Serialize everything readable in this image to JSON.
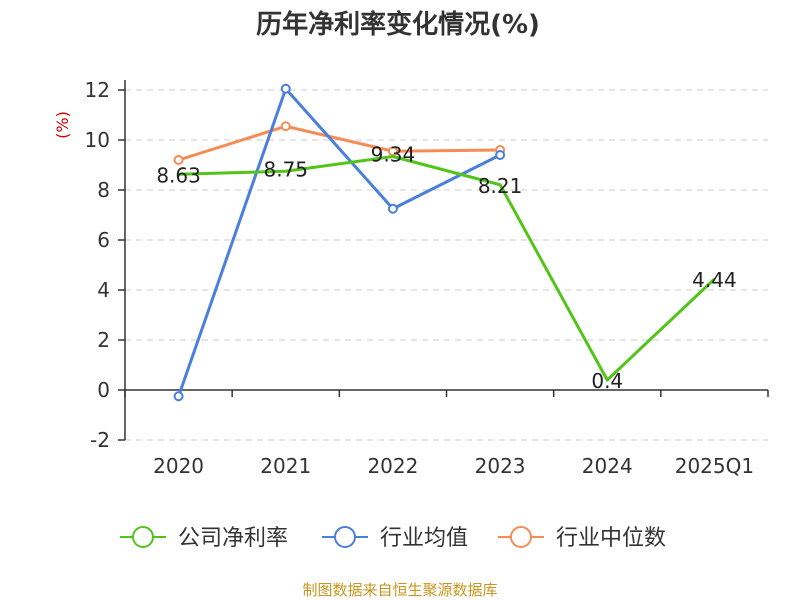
{
  "chart_data": {
    "type": "line",
    "title": "历年净利率变化情况(%)",
    "ylabel": "(%)",
    "xlabel": "",
    "categories": [
      "2020",
      "2021",
      "2022",
      "2023",
      "2024",
      "2025Q1"
    ],
    "ylim": [
      -2,
      12
    ],
    "yticks": [
      -2,
      0,
      2,
      4,
      6,
      8,
      10,
      12
    ],
    "grid": true,
    "legend_position": "bottom",
    "series": [
      {
        "name": "公司净利率",
        "color": "#52c41a",
        "values": [
          8.63,
          8.75,
          9.34,
          8.21,
          0.4,
          4.44
        ],
        "labels": [
          "8.63",
          "8.75",
          "9.34",
          "8.21",
          "0.4",
          "4.44"
        ]
      },
      {
        "name": "行业均值",
        "color": "#4a7fdc",
        "values": [
          -0.25,
          12.05,
          7.25,
          9.4,
          null,
          null
        ]
      },
      {
        "name": "行业中位数",
        "color": "#f58c55",
        "values": [
          9.2,
          10.55,
          9.55,
          9.6,
          null,
          null
        ]
      }
    ]
  },
  "source": "制图数据来自恒生聚源数据库"
}
